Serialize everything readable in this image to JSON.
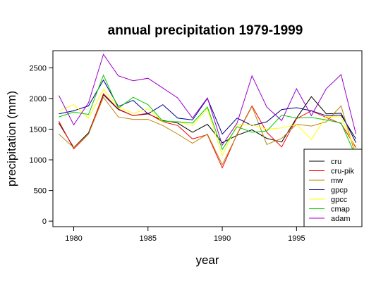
{
  "chart_data": {
    "type": "line",
    "title": "annual precipitation 1979-1999",
    "xlabel": "year",
    "ylabel": "precipitation (mm)",
    "xlim": [
      1978.6,
      1999.4
    ],
    "ylim": [
      -90,
      2780
    ],
    "x_ticks": [
      1980,
      1985,
      1990,
      1995
    ],
    "y_ticks": [
      0,
      500,
      1000,
      1500,
      2000,
      2500
    ],
    "legend_position": "bottom-right",
    "grid": false,
    "x": [
      1979,
      1980,
      1981,
      1982,
      1983,
      1984,
      1985,
      1986,
      1987,
      1988,
      1989,
      1990,
      1991,
      1992,
      1993,
      1994,
      1995,
      1996,
      1997,
      1998,
      1999
    ],
    "series": [
      {
        "name": "cru",
        "color": "#000000",
        "values": [
          1600,
          1200,
          1440,
          2060,
          1820,
          1720,
          1750,
          1640,
          1600,
          1450,
          1580,
          1280,
          1400,
          1490,
          1350,
          1290,
          1680,
          2030,
          1750,
          1760,
          1280
        ]
      },
      {
        "name": "cru-pik",
        "color": "#ff0000",
        "values": [
          1630,
          1180,
          1420,
          2080,
          1830,
          1720,
          1760,
          1620,
          1560,
          1340,
          1410,
          870,
          1420,
          1880,
          1450,
          1210,
          1670,
          1800,
          1690,
          1590,
          1200
        ]
      },
      {
        "name": "mw",
        "color": "#b8860b",
        "values": [
          1420,
          1200,
          1420,
          2020,
          1700,
          1660,
          1660,
          1560,
          1420,
          1270,
          1420,
          920,
          1410,
          1870,
          1250,
          1350,
          1580,
          1550,
          1620,
          1880,
          1050
        ]
      },
      {
        "name": "gpcp",
        "color": "#00008b",
        "values": [
          1750,
          1800,
          1880,
          2300,
          1870,
          1970,
          1750,
          1900,
          1680,
          1650,
          2000,
          1420,
          1680,
          1560,
          1620,
          1820,
          1850,
          1800,
          1720,
          1730,
          1340
        ]
      },
      {
        "name": "gpcc",
        "color": "#ffff00",
        "values": [
          1800,
          1900,
          1680,
          2150,
          1860,
          1760,
          1830,
          1620,
          1620,
          1560,
          1830,
          1070,
          1580,
          1570,
          1500,
          1520,
          1580,
          1330,
          1710,
          1700,
          1150
        ]
      },
      {
        "name": "cmap",
        "color": "#00cc00",
        "values": [
          1700,
          1780,
          1740,
          2380,
          1840,
          2020,
          1900,
          1630,
          1620,
          1600,
          1860,
          1170,
          1540,
          1450,
          1470,
          1730,
          1680,
          1690,
          1650,
          1600,
          1050
        ]
      },
      {
        "name": "adam",
        "color": "#9900cc",
        "values": [
          2050,
          1570,
          1930,
          2720,
          2370,
          2290,
          2330,
          2170,
          2010,
          1680,
          2010,
          1240,
          1600,
          2370,
          1860,
          1640,
          2160,
          1720,
          2160,
          2390,
          1420
        ]
      }
    ]
  }
}
